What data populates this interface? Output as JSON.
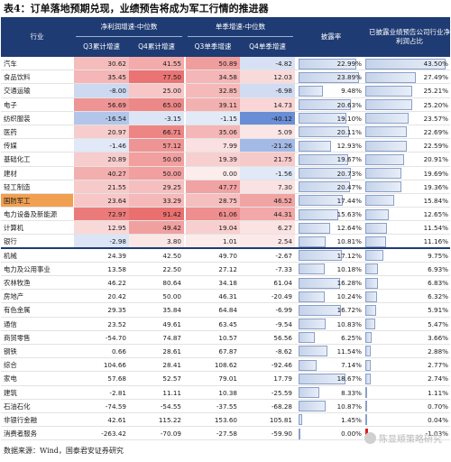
{
  "title": "表4：订单落地预期兑现，业绩预告将成为军工行情的推进器",
  "header": {
    "industry": "行业",
    "net_profit_group": "净利润增速-中位数",
    "q3_cum": "Q3累计增速",
    "q4_cum": "Q4累计增速",
    "quarter_group": "单季增速-中位数",
    "q3_single": "Q3单季增速",
    "q4_single": "Q4单季增速",
    "disclosure": "披露率",
    "positive_ratio": "已披露业绩预告公司行业净利润占比"
  },
  "colors": {
    "header_bg": "#1f3b73",
    "highlight_row": "#f0a050",
    "negative_bar": "#d92020"
  },
  "rows": [
    {
      "name": "汽车",
      "q3c": "30.62",
      "q4c": "41.55",
      "q3s": "50.89",
      "q4s": "-4.82",
      "dis": "22.99%",
      "dis_v": 22.99,
      "pos": "43.50%",
      "pos_v": 43.5
    },
    {
      "name": "食品饮料",
      "q3c": "35.45",
      "q4c": "77.50",
      "q3s": "34.58",
      "q4s": "12.03",
      "dis": "23.89%",
      "dis_v": 23.89,
      "pos": "27.49%",
      "pos_v": 27.49
    },
    {
      "name": "交通运输",
      "q3c": "-8.00",
      "q4c": "25.00",
      "q3s": "32.85",
      "q4s": "-6.98",
      "dis": "9.48%",
      "dis_v": 9.48,
      "pos": "25.21%",
      "pos_v": 25.21
    },
    {
      "name": "电子",
      "q3c": "56.69",
      "q4c": "65.00",
      "q3s": "39.11",
      "q4s": "14.73",
      "dis": "20.63%",
      "dis_v": 20.63,
      "pos": "25.20%",
      "pos_v": 25.2
    },
    {
      "name": "纺织服装",
      "q3c": "-16.54",
      "q4c": "-3.15",
      "q3s": "-1.15",
      "q4s": "-40.12",
      "dis": "19.10%",
      "dis_v": 19.1,
      "pos": "23.57%",
      "pos_v": 23.57
    },
    {
      "name": "医药",
      "q3c": "20.97",
      "q4c": "66.71",
      "q3s": "35.06",
      "q4s": "5.09",
      "dis": "20.11%",
      "dis_v": 20.11,
      "pos": "22.69%",
      "pos_v": 22.69
    },
    {
      "name": "传媒",
      "q3c": "-1.46",
      "q4c": "57.12",
      "q3s": "7.99",
      "q4s": "-21.26",
      "dis": "12.93%",
      "dis_v": 12.93,
      "pos": "22.59%",
      "pos_v": 22.59
    },
    {
      "name": "基础化工",
      "q3c": "20.89",
      "q4c": "50.00",
      "q3s": "19.39",
      "q4s": "21.75",
      "dis": "19.67%",
      "dis_v": 19.67,
      "pos": "20.91%",
      "pos_v": 20.91
    },
    {
      "name": "建材",
      "q3c": "40.27",
      "q4c": "50.00",
      "q3s": "0.00",
      "q4s": "-1.56",
      "dis": "20.73%",
      "dis_v": 20.73,
      "pos": "19.69%",
      "pos_v": 19.69
    },
    {
      "name": "轻工制造",
      "q3c": "21.55",
      "q4c": "29.25",
      "q3s": "47.77",
      "q4s": "7.30",
      "dis": "20.47%",
      "dis_v": 20.47,
      "pos": "19.36%",
      "pos_v": 19.36
    },
    {
      "name": "国防军工",
      "q3c": "23.64",
      "q4c": "33.29",
      "q3s": "28.75",
      "q4s": "46.52",
      "dis": "17.44%",
      "dis_v": 17.44,
      "pos": "15.84%",
      "pos_v": 15.84,
      "hl": true
    },
    {
      "name": "电力设备及新能源",
      "q3c": "72.97",
      "q4c": "91.42",
      "q3s": "61.06",
      "q4s": "44.31",
      "dis": "15.63%",
      "dis_v": 15.63,
      "pos": "12.65%",
      "pos_v": 12.65
    },
    {
      "name": "计算机",
      "q3c": "12.95",
      "q4c": "49.42",
      "q3s": "19.04",
      "q4s": "6.27",
      "dis": "12.64%",
      "dis_v": 12.64,
      "pos": "11.54%",
      "pos_v": 11.54
    },
    {
      "name": "银行",
      "q3c": "-2.98",
      "q4c": "3.80",
      "q3s": "1.01",
      "q4s": "2.54",
      "dis": "10.81%",
      "dis_v": 10.81,
      "pos": "11.16%",
      "pos_v": 11.16,
      "end": true
    },
    {
      "name": "机械",
      "q3c": "24.39",
      "q4c": "42.50",
      "q3s": "49.70",
      "q4s": "-2.67",
      "dis": "17.12%",
      "dis_v": 17.12,
      "pos": "9.75%",
      "pos_v": 9.75
    },
    {
      "name": "电力及公用事业",
      "q3c": "13.58",
      "q4c": "22.50",
      "q3s": "27.12",
      "q4s": "-7.33",
      "dis": "10.18%",
      "dis_v": 10.18,
      "pos": "6.93%",
      "pos_v": 6.93
    },
    {
      "name": "农林牧渔",
      "q3c": "46.22",
      "q4c": "80.64",
      "q3s": "34.18",
      "q4s": "61.04",
      "dis": "16.28%",
      "dis_v": 16.28,
      "pos": "6.83%",
      "pos_v": 6.83
    },
    {
      "name": "房地产",
      "q3c": "20.42",
      "q4c": "50.00",
      "q3s": "46.31",
      "q4s": "-20.49",
      "dis": "10.24%",
      "dis_v": 10.24,
      "pos": "6.32%",
      "pos_v": 6.32
    },
    {
      "name": "有色金属",
      "q3c": "29.35",
      "q4c": "35.84",
      "q3s": "64.84",
      "q4s": "-6.99",
      "dis": "16.72%",
      "dis_v": 16.72,
      "pos": "5.91%",
      "pos_v": 5.91
    },
    {
      "name": "通信",
      "q3c": "23.52",
      "q4c": "49.61",
      "q3s": "63.45",
      "q4s": "-9.54",
      "dis": "10.83%",
      "dis_v": 10.83,
      "pos": "5.47%",
      "pos_v": 5.47
    },
    {
      "name": "商贸零售",
      "q3c": "-54.70",
      "q4c": "74.87",
      "q3s": "10.57",
      "q4s": "56.56",
      "dis": "6.25%",
      "dis_v": 6.25,
      "pos": "3.66%",
      "pos_v": 3.66
    },
    {
      "name": "钢铁",
      "q3c": "0.66",
      "q4c": "28.61",
      "q3s": "67.87",
      "q4s": "-8.62",
      "dis": "11.54%",
      "dis_v": 11.54,
      "pos": "2.88%",
      "pos_v": 2.88
    },
    {
      "name": "综合",
      "q3c": "104.66",
      "q4c": "28.41",
      "q3s": "108.62",
      "q4s": "-92.46",
      "dis": "7.14%",
      "dis_v": 7.14,
      "pos": "2.77%",
      "pos_v": 2.77
    },
    {
      "name": "家电",
      "q3c": "57.68",
      "q4c": "52.57",
      "q3s": "79.01",
      "q4s": "17.79",
      "dis": "18.67%",
      "dis_v": 18.67,
      "pos": "2.74%",
      "pos_v": 2.74
    },
    {
      "name": "建筑",
      "q3c": "-2.81",
      "q4c": "11.11",
      "q3s": "10.38",
      "q4s": "-25.59",
      "dis": "8.33%",
      "dis_v": 8.33,
      "pos": "1.11%",
      "pos_v": 1.11
    },
    {
      "name": "石油石化",
      "q3c": "-74.59",
      "q4c": "-54.55",
      "q3s": "-37.55",
      "q4s": "-68.28",
      "dis": "10.87%",
      "dis_v": 10.87,
      "pos": "0.70%",
      "pos_v": 0.7
    },
    {
      "name": "非银行金融",
      "q3c": "42.61",
      "q4c": "115.22",
      "q3s": "153.60",
      "q4s": "105.81",
      "dis": "1.45%",
      "dis_v": 1.45,
      "pos": "0.04%",
      "pos_v": 0.04
    },
    {
      "name": "消费者服务",
      "q3c": "-263.42",
      "q4c": "-70.09",
      "q3s": "-27.58",
      "q4s": "-59.90",
      "dis": "0.00%",
      "dis_v": 0.0,
      "pos": "-1.03%",
      "pos_v": -1.03
    }
  ],
  "footer": "数据来源：Wind，国泰君安证券研究",
  "watermark": "陈显顺策略研究"
}
